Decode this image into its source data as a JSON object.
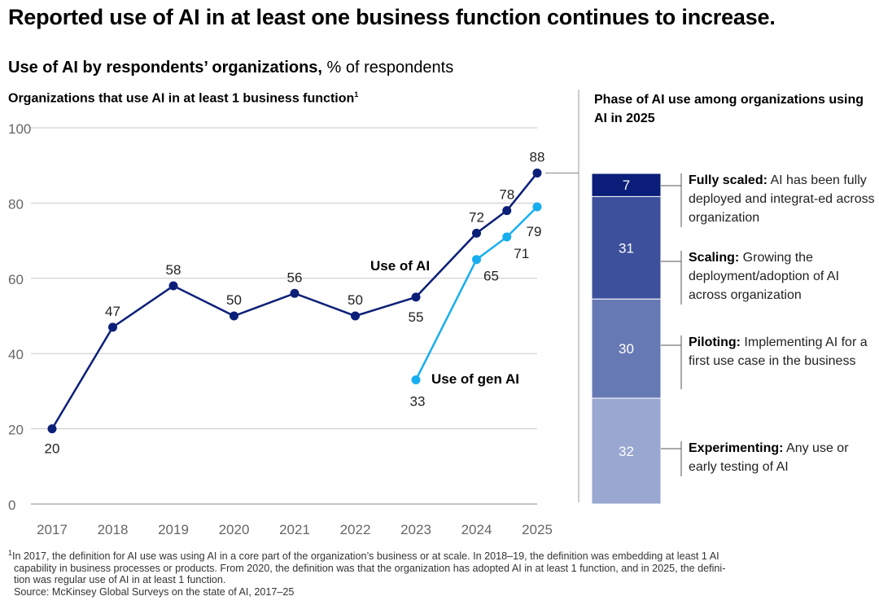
{
  "title": "Reported use of AI in at least one business function continues to increase.",
  "subtitle": {
    "bold": "Use of AI by respondents’ organizations,",
    "regular": " % of respondents"
  },
  "chart_data": [
    {
      "type": "line",
      "title": "Organizations that use AI in at least 1 business function",
      "title_footnote": "1",
      "ylim": [
        0,
        100
      ],
      "yticks": [
        0,
        20,
        40,
        60,
        80,
        100
      ],
      "xticks": [
        "2017",
        "2018",
        "2019",
        "2020",
        "2021",
        "2022",
        "2023",
        "2024",
        "2025"
      ],
      "grid": true,
      "series": [
        {
          "name": "Use of AI",
          "color": "#0b1f78",
          "x": [
            2017,
            2018,
            2019,
            2020,
            2021,
            2022,
            2023,
            2024,
            2024.5,
            2025
          ],
          "values": [
            20,
            47,
            58,
            50,
            56,
            50,
            55,
            72,
            78,
            88
          ]
        },
        {
          "name": "Use of gen AI",
          "color": "#17aef0",
          "x": [
            2023,
            2024,
            2024.5,
            2025
          ],
          "values": [
            33,
            65,
            71,
            79
          ]
        }
      ]
    },
    {
      "type": "bar",
      "stacked": true,
      "title": "Phase of AI use among organizations using AI in 2025",
      "segments": [
        {
          "value": 7,
          "color": "#0a1d78",
          "label_bold": "Fully scaled:",
          "label": " AI has been fully deployed and integrat-ed across organization"
        },
        {
          "value": 31,
          "color": "#3c509b",
          "label_bold": "Scaling:",
          "label": " Growing the deployment/adoption of AI across organization"
        },
        {
          "value": 30,
          "color": "#6779b4",
          "label_bold": "Piloting:",
          "label": " Implementing AI for a first use case in the business"
        },
        {
          "value": 32,
          "color": "#9aa7d0",
          "label_bold": "Experimenting:",
          "label": " Any use or early testing of AI"
        }
      ]
    }
  ],
  "footnote": {
    "marker": "1",
    "lines": [
      "In 2017, the definition for AI use was using AI in a core part of the organization’s business or at scale. In 2018–19, the definition was embedding at least 1 AI",
      "capability in business processes or products. From 2020, the definition was that the organization has adopted AI in at least 1 function, and in 2025, the defini-",
      "tion was regular use of AI in at least 1 function."
    ],
    "source": "Source: McKinsey Global Surveys on the state of AI, 2017–25"
  }
}
